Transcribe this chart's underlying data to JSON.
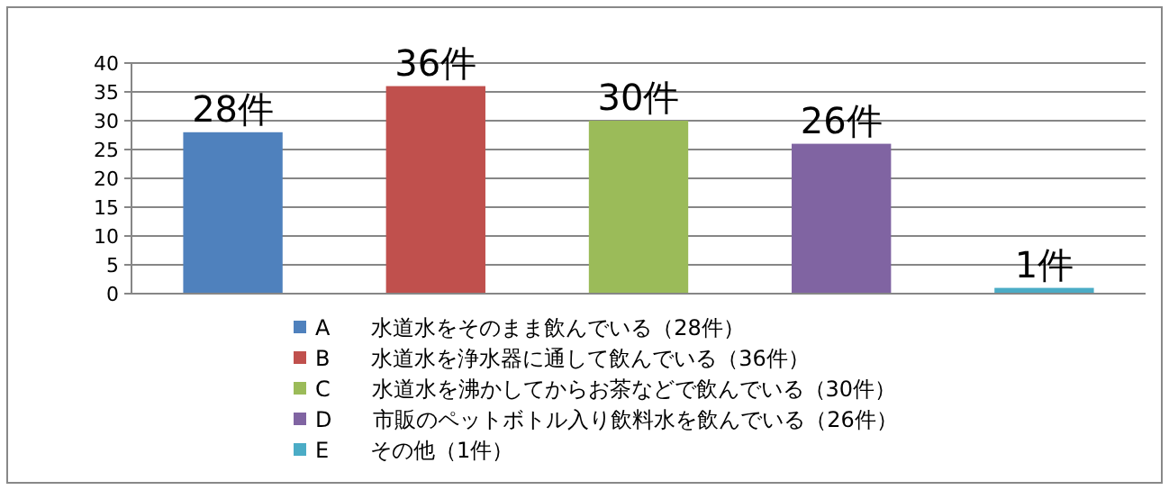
{
  "chart_data": {
    "type": "bar",
    "categories": [
      null,
      null,
      null,
      null,
      null
    ],
    "series": [
      {
        "name": "A      水道水をそのまま飲んでいる（28件）",
        "color": "#4f81bd",
        "values": [
          28,
          null,
          null,
          null,
          null
        ],
        "value_labels": [
          "28件",
          null,
          null,
          null,
          null
        ]
      },
      {
        "name": "B      水道水を浄水器に通して飲んでいる（36件）",
        "color": "#c0504d",
        "values": [
          null,
          36,
          null,
          null,
          null
        ],
        "value_labels": [
          null,
          "36件",
          null,
          null,
          null
        ]
      },
      {
        "name": "C      水道水を沸かしてからお茶などで飲んでいる（30件）",
        "color": "#9bbb59",
        "values": [
          null,
          null,
          30,
          null,
          null
        ],
        "value_labels": [
          null,
          null,
          "30件",
          null,
          null
        ]
      },
      {
        "name": "D      市販のペットボトル入り飲料水を飲んでいる（26件）",
        "color": "#8064a2",
        "values": [
          null,
          null,
          null,
          26,
          null
        ],
        "value_labels": [
          null,
          null,
          null,
          "26件",
          null
        ]
      },
      {
        "name": "E      その他（1件）",
        "color": "#4bacc6",
        "values": [
          null,
          null,
          null,
          null,
          1
        ],
        "value_labels": [
          null,
          null,
          null,
          null,
          "1件"
        ]
      }
    ],
    "ylim": [
      0,
      40
    ],
    "yticks": [
      0,
      5,
      10,
      15,
      20,
      25,
      30,
      35,
      40
    ],
    "grid": "y",
    "legend": "bottom"
  }
}
